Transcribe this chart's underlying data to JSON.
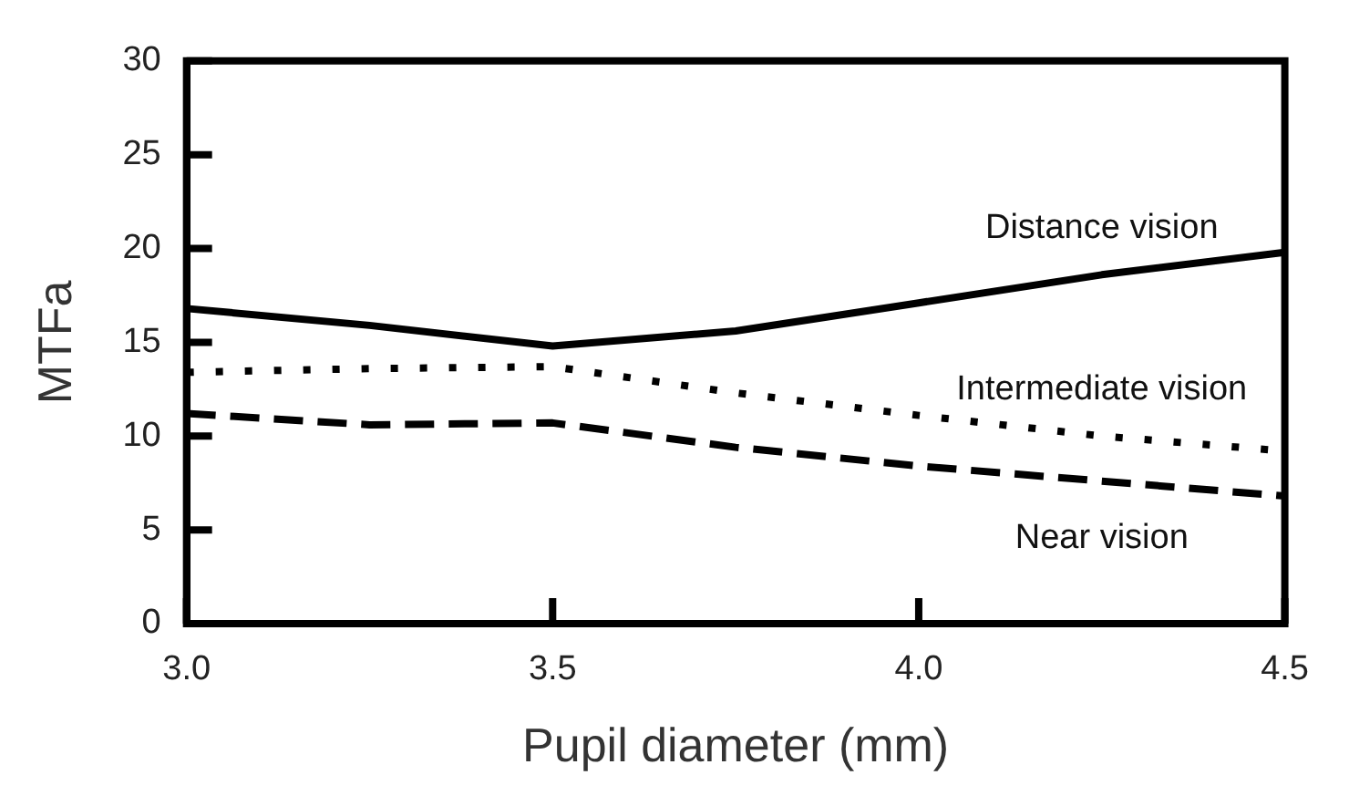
{
  "chart_data": {
    "type": "line",
    "xlabel": "Pupil diameter (mm)",
    "ylabel": "MTFa",
    "xlim": [
      3.0,
      4.5
    ],
    "ylim": [
      0,
      30
    ],
    "xticks": [
      {
        "value": 3.0,
        "label": "3.0"
      },
      {
        "value": 3.5,
        "label": "3.5"
      },
      {
        "value": 4.0,
        "label": "4.0"
      },
      {
        "value": 4.5,
        "label": "4.5"
      }
    ],
    "yticks": [
      0,
      5,
      10,
      15,
      20,
      25,
      30
    ],
    "x": [
      3.0,
      3.25,
      3.5,
      3.75,
      4.0,
      4.25,
      4.5
    ],
    "grid": false,
    "legend": false,
    "marker": "none",
    "series": [
      {
        "name": "Distance vision",
        "color": "#000000",
        "line_style": "solid",
        "values": [
          16.8,
          15.9,
          14.8,
          15.6,
          17.1,
          18.6,
          19.8
        ]
      },
      {
        "name": "Intermediate vision",
        "color": "#000000",
        "line_style": "dotted",
        "values": [
          13.4,
          13.6,
          13.7,
          12.3,
          11.1,
          10.0,
          9.2
        ]
      },
      {
        "name": "Near vision",
        "color": "#000000",
        "line_style": "dashed",
        "values": [
          11.2,
          10.6,
          10.7,
          9.4,
          8.4,
          7.6,
          6.8
        ]
      }
    ]
  }
}
